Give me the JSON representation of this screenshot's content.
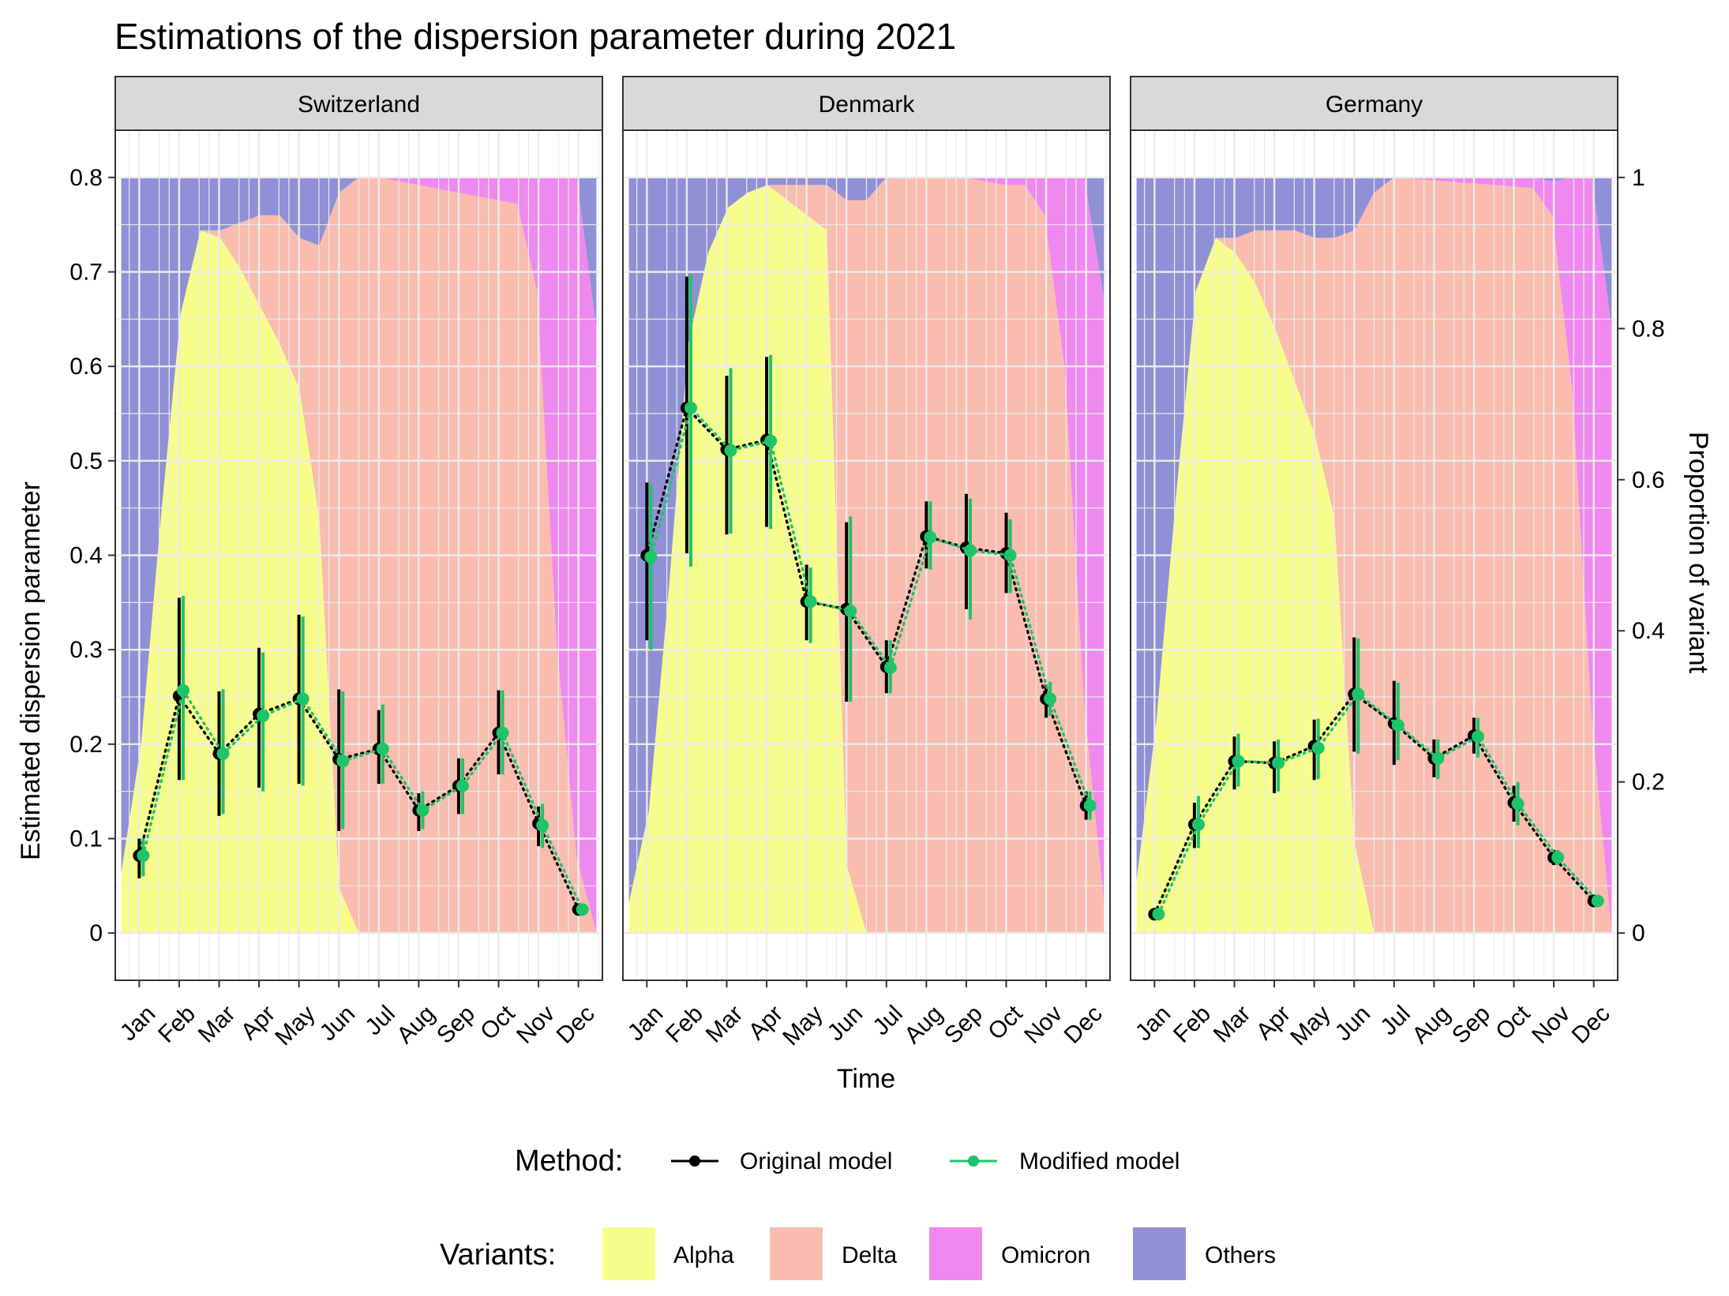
{
  "chart_data": {
    "type": "faceted line with error bars over stacked area",
    "title": "Estimations of the dispersion parameter during 2021",
    "xlabel": "Time",
    "ylabel": "Estimated dispersion parameter",
    "y2label": "Proportion of variant",
    "ylim": [
      -0.05,
      0.85
    ],
    "y_ticks": [
      "0",
      "0.1",
      "0.2",
      "0.3",
      "0.4",
      "0.5",
      "0.6",
      "0.7",
      "0.8"
    ],
    "y2_ticks": [
      "0",
      "0.2",
      "0.4",
      "0.6",
      "0.8",
      "1"
    ],
    "y2_scale": "proportion 1 corresponds to dispersion 0.8",
    "months": [
      "Jan",
      "Feb",
      "Mar",
      "Apr",
      "May",
      "Jun",
      "Jul",
      "Aug",
      "Sep",
      "Oct",
      "Nov",
      "Dec"
    ],
    "grid": true,
    "legend_position": "bottom",
    "method_legend": {
      "title": "Method:",
      "items": [
        {
          "label": "Original model",
          "color": "#000000"
        },
        {
          "label": "Modified model",
          "color": "#1ec46a"
        }
      ]
    },
    "variant_legend": {
      "title": "Variants:",
      "items": [
        {
          "label": "Alpha",
          "color": "#f7fd8a"
        },
        {
          "label": "Delta",
          "color": "#f9bcaf"
        },
        {
          "label": "Omicron",
          "color": "#ef89ef"
        },
        {
          "label": "Others",
          "color": "#9090d6"
        }
      ]
    },
    "panels": [
      {
        "name": "Switzerland",
        "variant_x": [
          0,
          0.5,
          1,
          1.5,
          2,
          2.5,
          3,
          3.5,
          4,
          4.5,
          5,
          5.5,
          6,
          6.5,
          7,
          7.5,
          8,
          8.5,
          9,
          9.5,
          10,
          10.5,
          11,
          11.5,
          12
        ],
        "alpha": [
          0.08,
          0.25,
          0.55,
          0.82,
          0.93,
          0.92,
          0.88,
          0.83,
          0.78,
          0.72,
          0.55,
          0.06,
          0,
          0,
          0,
          0,
          0,
          0,
          0,
          0,
          0,
          0,
          0,
          0,
          0
        ],
        "delta": [
          0,
          0,
          0,
          0,
          0,
          0.01,
          0.06,
          0.12,
          0.17,
          0.2,
          0.36,
          0.92,
          1,
          1,
          0.995,
          0.99,
          0.985,
          0.98,
          0.975,
          0.97,
          0.965,
          0.85,
          0.38,
          0.1,
          0
        ],
        "omicron": [
          0,
          0,
          0,
          0,
          0,
          0,
          0,
          0,
          0,
          0,
          0,
          0,
          0,
          0,
          0.005,
          0.01,
          0.015,
          0.02,
          0.025,
          0.03,
          0.035,
          0.15,
          0.62,
          0.9,
          0.8
        ],
        "original": {
          "x": [
            0.0,
            1.0,
            2.0,
            3.0,
            4.0,
            5.0,
            6.0,
            7.0,
            8.0,
            9.0,
            10.0,
            11.0
          ],
          "y": [
            0.082,
            0.251,
            0.19,
            0.232,
            0.248,
            0.184,
            0.195,
            0.13,
            0.156,
            0.212,
            0.116,
            0.025
          ],
          "low": [
            0.058,
            0.162,
            0.124,
            0.154,
            0.158,
            0.108,
            0.158,
            0.108,
            0.126,
            0.168,
            0.092,
            0.02
          ],
          "high": [
            0.1,
            0.355,
            0.256,
            0.302,
            0.337,
            0.258,
            0.236,
            0.148,
            0.185,
            0.257,
            0.134,
            0.03
          ]
        },
        "modified": {
          "x": [
            0.1,
            1.1,
            2.1,
            3.1,
            4.1,
            5.1,
            6.1,
            7.1,
            8.1,
            9.1,
            10.1,
            11.1
          ],
          "y": [
            0.082,
            0.257,
            0.19,
            0.23,
            0.248,
            0.182,
            0.195,
            0.13,
            0.156,
            0.212,
            0.114,
            0.025
          ],
          "low": [
            0.06,
            0.162,
            0.126,
            0.15,
            0.156,
            0.11,
            0.158,
            0.11,
            0.126,
            0.168,
            0.09,
            0.02
          ],
          "high": [
            0.1,
            0.357,
            0.258,
            0.297,
            0.335,
            0.256,
            0.242,
            0.15,
            0.185,
            0.257,
            0.137,
            0.03
          ]
        }
      },
      {
        "name": "Denmark",
        "variant_x": [
          0,
          0.5,
          1,
          1.5,
          2,
          2.5,
          3,
          3.5,
          4,
          4.5,
          5,
          5.5,
          6,
          6.5,
          7,
          7.5,
          8,
          8.5,
          9,
          9.5,
          10,
          10.5,
          11,
          11.5,
          12
        ],
        "alpha": [
          0.04,
          0.16,
          0.45,
          0.78,
          0.9,
          0.96,
          0.98,
          0.99,
          0.97,
          0.95,
          0.93,
          0.09,
          0,
          0,
          0,
          0,
          0,
          0,
          0,
          0,
          0,
          0,
          0,
          0,
          0
        ],
        "delta": [
          0,
          0,
          0,
          0,
          0,
          0,
          0,
          0,
          0.02,
          0.04,
          0.06,
          0.88,
          0.97,
          1,
          1,
          1,
          1,
          1,
          0.995,
          0.99,
          0.99,
          0.95,
          0.75,
          0.3,
          0.04
        ],
        "omicron": [
          0,
          0,
          0,
          0,
          0,
          0,
          0,
          0,
          0,
          0,
          0,
          0,
          0,
          0,
          0,
          0,
          0,
          0,
          0.005,
          0.01,
          0.01,
          0.05,
          0.25,
          0.7,
          0.8
        ],
        "original": {
          "x": [
            0.0,
            1.0,
            2.0,
            3.0,
            4.0,
            5.0,
            6.0,
            7.0,
            8.0,
            9.0,
            10.0,
            11.0
          ],
          "y": [
            0.4,
            0.556,
            0.512,
            0.522,
            0.351,
            0.343,
            0.282,
            0.42,
            0.408,
            0.402,
            0.248,
            0.135
          ],
          "low": [
            0.31,
            0.402,
            0.422,
            0.43,
            0.31,
            0.245,
            0.254,
            0.386,
            0.343,
            0.36,
            0.228,
            0.12
          ],
          "high": [
            0.477,
            0.695,
            0.59,
            0.61,
            0.39,
            0.435,
            0.31,
            0.457,
            0.465,
            0.445,
            0.263,
            0.15
          ]
        },
        "modified": {
          "x": [
            0.1,
            1.1,
            2.1,
            3.1,
            4.1,
            5.1,
            6.1,
            7.1,
            8.1,
            9.1,
            10.1,
            11.1
          ],
          "y": [
            0.398,
            0.556,
            0.511,
            0.521,
            0.351,
            0.341,
            0.281,
            0.419,
            0.405,
            0.4,
            0.248,
            0.135
          ],
          "low": [
            0.3,
            0.388,
            0.423,
            0.428,
            0.307,
            0.245,
            0.254,
            0.385,
            0.332,
            0.36,
            0.23,
            0.12
          ],
          "high": [
            0.475,
            0.697,
            0.598,
            0.612,
            0.387,
            0.441,
            0.31,
            0.457,
            0.46,
            0.438,
            0.266,
            0.15
          ]
        }
      },
      {
        "name": "Germany",
        "variant_x": [
          0,
          0.5,
          1,
          1.5,
          2,
          2.5,
          3,
          3.5,
          4,
          4.5,
          5,
          5.5,
          6,
          6.5,
          7,
          7.5,
          8,
          8.5,
          9,
          9.5,
          10,
          10.5,
          11,
          11.5,
          12
        ],
        "alpha": [
          0.07,
          0.28,
          0.58,
          0.85,
          0.92,
          0.9,
          0.86,
          0.8,
          0.73,
          0.66,
          0.55,
          0.12,
          0,
          0,
          0,
          0,
          0,
          0,
          0,
          0,
          0,
          0,
          0,
          0,
          0
        ],
        "delta": [
          0,
          0,
          0,
          0,
          0,
          0.02,
          0.07,
          0.13,
          0.2,
          0.26,
          0.37,
          0.81,
          0.98,
          1,
          0.998,
          0.996,
          0.994,
          0.992,
          0.99,
          0.988,
          0.986,
          0.95,
          0.72,
          0.28,
          0
        ],
        "omicron": [
          0,
          0,
          0,
          0,
          0,
          0,
          0,
          0,
          0,
          0,
          0,
          0,
          0,
          0,
          0.002,
          0.004,
          0.006,
          0.008,
          0.01,
          0.012,
          0.014,
          0.045,
          0.28,
          0.72,
          0.8
        ],
        "original": {
          "x": [
            0.0,
            1.0,
            2.0,
            3.0,
            4.0,
            5.0,
            6.0,
            7.0,
            8.0,
            9.0,
            10.0,
            11.0
          ],
          "y": [
            0.02,
            0.115,
            0.182,
            0.18,
            0.198,
            0.253,
            0.222,
            0.185,
            0.209,
            0.138,
            0.08,
            0.034
          ],
          "low": [
            0.018,
            0.09,
            0.152,
            0.148,
            0.162,
            0.192,
            0.178,
            0.165,
            0.19,
            0.118,
            0.072,
            0.031
          ],
          "high": [
            0.023,
            0.138,
            0.208,
            0.203,
            0.226,
            0.313,
            0.267,
            0.205,
            0.228,
            0.156,
            0.088,
            0.037
          ]
        },
        "modified": {
          "x": [
            0.1,
            1.1,
            2.1,
            3.1,
            4.1,
            5.1,
            6.1,
            7.1,
            8.1,
            9.1,
            10.1,
            11.1
          ],
          "y": [
            0.02,
            0.115,
            0.182,
            0.18,
            0.196,
            0.253,
            0.22,
            0.185,
            0.208,
            0.137,
            0.08,
            0.034
          ],
          "low": [
            0.018,
            0.09,
            0.155,
            0.15,
            0.163,
            0.19,
            0.183,
            0.163,
            0.186,
            0.114,
            0.072,
            0.031
          ],
          "high": [
            0.023,
            0.145,
            0.211,
            0.205,
            0.227,
            0.312,
            0.265,
            0.205,
            0.228,
            0.16,
            0.088,
            0.037
          ]
        }
      }
    ]
  }
}
